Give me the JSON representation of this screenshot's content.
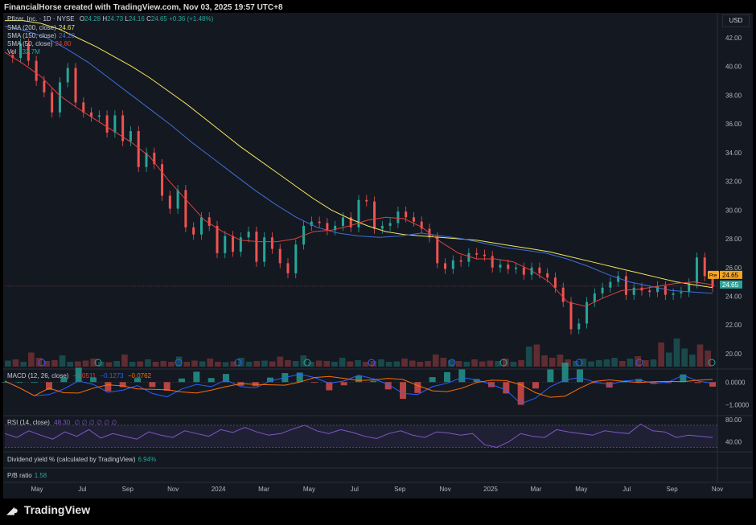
{
  "header": {
    "title": "FinancialHorse created with TradingView.com, Nov 03, 2025 19:57 UTC+8"
  },
  "currency": "USD",
  "footer": {
    "logo_text": "TradingView"
  },
  "legend": {
    "symbol": "Pfizer, Inc. · 1D · NYSE",
    "ohlc": {
      "o_label": "O",
      "o": "24.28",
      "h_label": "H",
      "h": "24.73",
      "l_label": "L",
      "l": "24.16",
      "c_label": "C",
      "c": "24.65",
      "chg": "+0.36 (+1.48%)"
    },
    "sma200": {
      "label": "SMA (200, close)",
      "value": "24.67"
    },
    "sma150": {
      "label": "SMA (150, close)",
      "value": "24.20"
    },
    "sma50": {
      "label": "SMA (50, close)",
      "value": "24.80"
    },
    "vol": {
      "label": "Vol",
      "value": "132.7M"
    },
    "macd": {
      "label": "MACD (12, 26, close)",
      "v1": "−0.0511",
      "v2": "−0.1273",
      "v3": "−0.0762"
    },
    "rsi": {
      "label": "RSI (14, close)",
      "value": "48.30",
      "extra": "∅ ∅ ∅ ∅ ∅ ∅"
    },
    "div": {
      "label": "Dividend yield % (calculated by TradingView)",
      "value": "6.94%"
    },
    "pb": {
      "label": "P/B ratio",
      "value": "1.58"
    }
  },
  "price_tags": {
    "pre_label": "Pre",
    "pre": "24.65",
    "last": "24.65"
  },
  "colors": {
    "up": "#26a69a",
    "down": "#ef5350",
    "sma200": "#f2e85c",
    "sma150": "#3d6fd6",
    "sma50": "#e0413c",
    "rsi": "#7e57c2",
    "macd": "#2962ff",
    "signal": "#ff6d00",
    "bg": "#141821"
  },
  "chart_data": {
    "type": "line",
    "title": "Pfizer, Inc. · 1D · NYSE",
    "x_ticks": [
      "May",
      "Jul",
      "Sep",
      "Nov",
      "2024",
      "Mar",
      "May",
      "Jul",
      "Sep",
      "Nov",
      "2025",
      "Mar",
      "May",
      "Jul",
      "Sep",
      "Nov"
    ],
    "y_ticks": [
      "42.00",
      "40.00",
      "38.00",
      "36.00",
      "34.00",
      "32.00",
      "30.00",
      "28.00",
      "26.00",
      "24.00",
      "22.00",
      "20.00"
    ],
    "ylim": [
      19.1,
      43.4
    ],
    "x_index_range": [
      0,
      128
    ],
    "series": [
      {
        "name": "Pfizer, Inc.",
        "values": [
          40.8,
          40.6,
          41.6,
          40.4,
          39.0,
          38.2,
          36.8,
          38.9,
          39.9,
          37.5,
          36.8,
          36.5,
          36.6,
          35.4,
          36.6,
          34.8,
          35.5,
          33.0,
          34.0,
          33.2,
          31.0,
          30.1,
          31.4,
          28.8,
          28.3,
          29.5,
          28.9,
          27.0,
          28.2,
          27.1,
          28.1,
          28.5,
          26.4,
          28.1,
          27.3,
          26.3,
          25.6,
          27.6,
          28.9,
          29.2,
          29.1,
          28.6,
          28.9,
          29.5,
          28.8,
          30.7,
          30.6,
          28.7,
          28.9,
          29.1,
          29.9,
          29.5,
          29.2,
          28.7,
          28.1,
          26.3,
          25.9,
          26.5,
          26.4,
          27.0,
          26.9,
          26.8,
          26.0,
          26.2,
          25.9,
          26.0,
          25.5,
          26.0,
          25.6,
          25.3,
          24.6,
          23.6,
          21.7,
          22.1,
          23.6,
          24.2,
          24.6,
          25.0,
          25.4,
          24.1,
          24.6,
          24.4,
          24.3,
          24.7,
          24.1,
          24.2,
          24.3,
          24.9,
          26.7,
          25.4,
          24.65
        ]
      },
      {
        "name": "SMA (200, close)",
        "values": []
      },
      {
        "name": "SMA (150, close)",
        "values": []
      },
      {
        "name": "SMA (50, close)",
        "values": []
      }
    ],
    "sma200_values": [
      43.2,
      43.2,
      43.0,
      42.6,
      42.0,
      41.4,
      40.7,
      40.0,
      39.2,
      38.3,
      37.4,
      36.4,
      35.4,
      34.4,
      33.5,
      32.6,
      31.7,
      30.8,
      30.0,
      29.4,
      28.9,
      28.5,
      28.3,
      28.2,
      28.1,
      28.0,
      27.9,
      27.7,
      27.5,
      27.3,
      27.1,
      26.8,
      26.5,
      26.2,
      25.9,
      25.6,
      25.3,
      25.0,
      24.8,
      24.6
    ],
    "sma150_values": [
      42.8,
      42.5,
      42.0,
      41.2,
      40.3,
      39.2,
      38.1,
      37.0,
      35.9,
      34.7,
      33.6,
      32.5,
      31.4,
      30.4,
      29.5,
      28.8,
      28.4,
      28.2,
      28.1,
      28.2,
      28.4,
      28.2,
      28.0,
      27.7,
      27.4,
      27.2,
      27.0,
      26.6,
      26.1,
      25.5,
      25.0,
      24.7,
      24.4,
      24.3,
      24.2
    ],
    "sma50_values": [
      41.0,
      40.2,
      39.3,
      38.0,
      37.1,
      36.3,
      35.5,
      34.7,
      33.7,
      32.1,
      30.7,
      29.3,
      28.5,
      27.9,
      27.8,
      27.8,
      28.0,
      28.5,
      28.6,
      28.9,
      29.3,
      29.5,
      29.4,
      28.8,
      27.8,
      27.0,
      26.6,
      26.6,
      26.4,
      25.8,
      25.0,
      23.6,
      23.3,
      23.9,
      24.4,
      24.5,
      24.7,
      24.9,
      25.0,
      24.8
    ],
    "volume_relative": [
      0.15,
      0.18,
      0.12,
      0.35,
      0.22,
      0.14,
      0.16,
      0.28,
      0.12,
      0.13,
      0.15,
      0.2,
      0.12,
      0.11,
      0.14,
      0.3,
      0.12,
      0.13,
      0.18,
      0.12,
      0.14,
      0.12,
      0.25,
      0.12,
      0.15,
      0.13,
      0.2,
      0.12,
      0.11,
      0.13,
      0.22,
      0.12,
      0.14,
      0.15,
      0.13,
      0.25,
      0.16,
      0.14,
      0.28,
      0.12,
      0.15,
      0.14,
      0.12,
      0.22,
      0.13,
      0.16,
      0.12,
      0.14,
      0.18,
      0.12,
      0.13,
      0.2,
      0.15,
      0.12,
      0.14,
      0.3,
      0.22,
      0.16,
      0.14,
      0.12,
      0.18,
      0.13,
      0.15,
      0.14,
      0.2,
      0.12,
      0.16,
      0.5,
      0.55,
      0.28,
      0.22,
      0.3,
      0.18,
      0.14,
      0.2,
      0.13,
      0.16,
      0.18,
      0.22,
      0.14,
      0.2,
      0.26,
      0.16,
      0.18,
      0.6,
      0.35,
      0.7,
      0.45,
      0.3,
      0.55,
      0.4
    ],
    "macd": {
      "ylim": [
        -1.3,
        0.4
      ],
      "y_ticks": [
        "0.0000",
        "−1.0000"
      ],
      "macd_values": [
        0.05,
        -0.25,
        -0.6,
        -0.55,
        -0.3,
        0.05,
        -0.1,
        -0.45,
        -0.35,
        -0.15,
        -0.5,
        -0.65,
        -0.3,
        -0.1,
        -0.2,
        0.1,
        -0.2,
        -0.25,
        0.05,
        0.2,
        0.35,
        0.2,
        -0.05,
        0.05,
        0.3,
        0.15,
        -0.1,
        -0.5,
        -0.55,
        -0.2,
        -0.05,
        0.2,
        0.1,
        -0.1,
        -0.35,
        -0.95,
        -0.7,
        -0.2,
        0.1,
        0.2,
        0.0,
        -0.1,
        0.05,
        0.1,
        -0.05,
        0.0,
        0.3,
        0.05,
        -0.05
      ]
    },
    "rsi": {
      "ylim": [
        25,
        80
      ],
      "y_ticks": [
        "80.00",
        "40.00"
      ],
      "band": [
        30,
        70
      ],
      "values": [
        55,
        48,
        60,
        52,
        45,
        58,
        50,
        62,
        47,
        55,
        50,
        45,
        58,
        52,
        48,
        60,
        55,
        50,
        62,
        57,
        66,
        58,
        52,
        55,
        63,
        70,
        60,
        55,
        62,
        57,
        50,
        46,
        55,
        60,
        52,
        48,
        58,
        56,
        52,
        55,
        35,
        30,
        40,
        55,
        50,
        48,
        62,
        58,
        55,
        52,
        60,
        57,
        55,
        72,
        60,
        58,
        48,
        52,
        50,
        48
      ]
    }
  }
}
